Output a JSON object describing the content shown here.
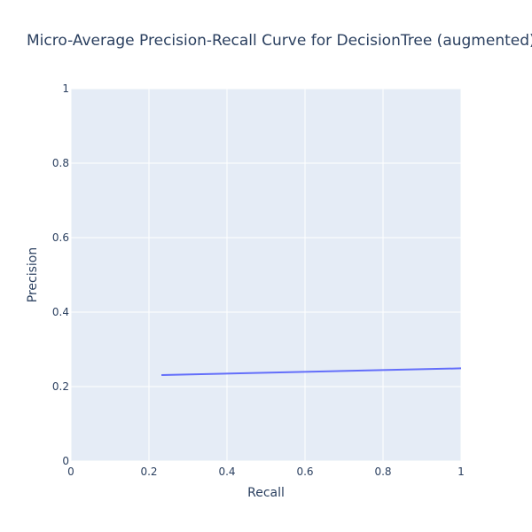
{
  "chart_data": {
    "type": "line",
    "title": "Micro-Average Precision-Recall Curve for DecisionTree (augmented)",
    "xlabel": "Recall",
    "ylabel": "Precision",
    "xlim": [
      0,
      1
    ],
    "ylim": [
      0,
      1
    ],
    "x_ticks": [
      "0",
      "0.2",
      "0.4",
      "0.6",
      "0.8",
      "1"
    ],
    "y_ticks": [
      "0",
      "0.2",
      "0.4",
      "0.6",
      "0.8",
      "1"
    ],
    "grid": true,
    "series": [
      {
        "x": [
          0.232,
          1.0
        ],
        "y": [
          0.231,
          0.249
        ]
      }
    ]
  },
  "colors": {
    "plot_background": "#e5ecf6",
    "line": "#636efa",
    "text": "#2a3f5f",
    "grid": "#ffffff"
  }
}
